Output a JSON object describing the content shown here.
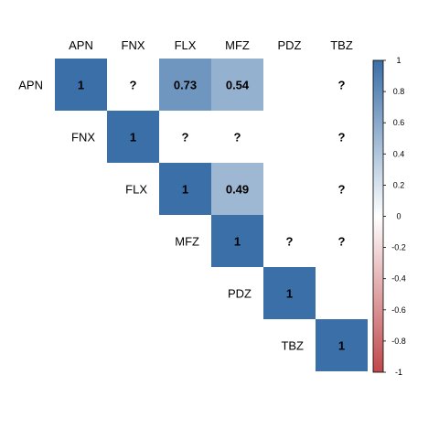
{
  "chart_data": {
    "type": "heatmap",
    "layout": "upper-triangular correlation matrix",
    "variables": [
      "APN",
      "FNX",
      "FLX",
      "MFZ",
      "PDZ",
      "TBZ"
    ],
    "cells": [
      {
        "row": "APN",
        "col": "APN",
        "value": 1,
        "label": "1"
      },
      {
        "row": "APN",
        "col": "FNX",
        "value": null,
        "label": "?"
      },
      {
        "row": "APN",
        "col": "FLX",
        "value": 0.73,
        "label": "0.73"
      },
      {
        "row": "APN",
        "col": "MFZ",
        "value": 0.54,
        "label": "0.54"
      },
      {
        "row": "APN",
        "col": "TBZ",
        "value": null,
        "label": "?"
      },
      {
        "row": "FNX",
        "col": "FNX",
        "value": 1,
        "label": "1"
      },
      {
        "row": "FNX",
        "col": "FLX",
        "value": null,
        "label": "?"
      },
      {
        "row": "FNX",
        "col": "MFZ",
        "value": null,
        "label": "?"
      },
      {
        "row": "FNX",
        "col": "TBZ",
        "value": null,
        "label": "?"
      },
      {
        "row": "FLX",
        "col": "FLX",
        "value": 1,
        "label": "1"
      },
      {
        "row": "FLX",
        "col": "MFZ",
        "value": 0.49,
        "label": "0.49"
      },
      {
        "row": "FLX",
        "col": "TBZ",
        "value": null,
        "label": "?"
      },
      {
        "row": "MFZ",
        "col": "MFZ",
        "value": 1,
        "label": "1"
      },
      {
        "row": "MFZ",
        "col": "PDZ",
        "value": null,
        "label": "?"
      },
      {
        "row": "MFZ",
        "col": "TBZ",
        "value": null,
        "label": "?"
      },
      {
        "row": "PDZ",
        "col": "PDZ",
        "value": 1,
        "label": "1"
      },
      {
        "row": "TBZ",
        "col": "TBZ",
        "value": 1,
        "label": "1"
      }
    ],
    "colorbar": {
      "range": [
        -1,
        1
      ],
      "ticks": [
        "1",
        "0.8",
        "0.6",
        "0.4",
        "0.2",
        "0",
        "-0.2",
        "-0.4",
        "-0.6",
        "-0.8",
        "-1"
      ],
      "colors": {
        "low": "#c0474a",
        "mid": "#ffffff",
        "high": "#3a6fa8"
      },
      "placement": "right"
    }
  }
}
